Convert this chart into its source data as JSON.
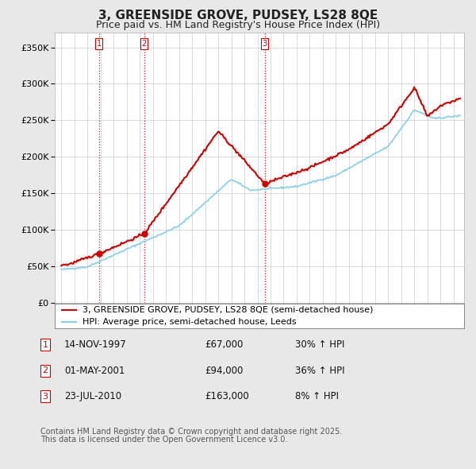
{
  "title": "3, GREENSIDE GROVE, PUDSEY, LS28 8QE",
  "subtitle": "Price paid vs. HM Land Registry's House Price Index (HPI)",
  "ylabel_ticks": [
    "£0",
    "£50K",
    "£100K",
    "£150K",
    "£200K",
    "£250K",
    "£300K",
    "£350K"
  ],
  "ytick_values": [
    0,
    50000,
    100000,
    150000,
    200000,
    250000,
    300000,
    350000
  ],
  "ylim": [
    0,
    370000
  ],
  "xlim_start": 1994.5,
  "xlim_end": 2025.8,
  "background_color": "#e8e8e8",
  "plot_bg_color": "#ffffff",
  "red_line_color": "#cc0000",
  "blue_line_color": "#87CEEB",
  "marker_color": "#cc0000",
  "vline_color": "#cc0000",
  "legend_label_red": "3, GREENSIDE GROVE, PUDSEY, LS28 8QE (semi-detached house)",
  "legend_label_blue": "HPI: Average price, semi-detached house, Leeds",
  "sale1_date": 1997.87,
  "sale1_price": 67000,
  "sale1_label": "1",
  "sale2_date": 2001.33,
  "sale2_price": 94000,
  "sale2_label": "2",
  "sale3_date": 2010.55,
  "sale3_price": 163000,
  "sale3_label": "3",
  "table_entries": [
    {
      "num": "1",
      "date": "14-NOV-1997",
      "price": "£67,000",
      "hpi": "30% ↑ HPI"
    },
    {
      "num": "2",
      "date": "01-MAY-2001",
      "price": "£94,000",
      "hpi": "36% ↑ HPI"
    },
    {
      "num": "3",
      "date": "23-JUL-2010",
      "price": "£163,000",
      "hpi": "8% ↑ HPI"
    }
  ],
  "footer_line1": "Contains HM Land Registry data © Crown copyright and database right 2025.",
  "footer_line2": "This data is licensed under the Open Government Licence v3.0.",
  "title_fontsize": 11,
  "subtitle_fontsize": 9,
  "tick_fontsize": 8,
  "legend_fontsize": 8,
  "table_fontsize": 8.5,
  "footer_fontsize": 7
}
